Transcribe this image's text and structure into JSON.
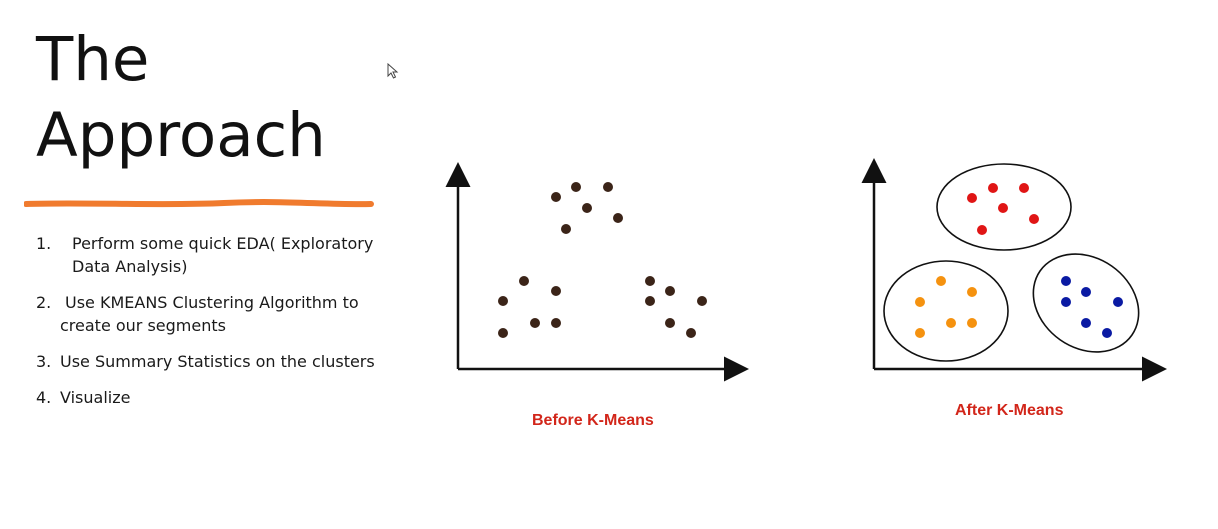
{
  "slide": {
    "title_line1": "The",
    "title_line2": "Approach",
    "steps": [
      {
        "num": "1.",
        "text": "Perform some quick EDA( Exploratory Data Analysis)"
      },
      {
        "num": "2.",
        "text": "Use KMEANS Clustering Algorithm to create our segments"
      },
      {
        "num": "3.",
        "text": "Use Summary Statistics on the clusters"
      },
      {
        "num": "4.",
        "text": "Visualize"
      }
    ]
  },
  "before": {
    "caption": "Before K-Means",
    "point_color": "#3b2418"
  },
  "after": {
    "caption": "After K-Means",
    "cluster_colors": [
      "#e01515",
      "#f5920f",
      "#0a1aa3"
    ]
  },
  "colors": {
    "underline": "#f07b2e",
    "caption": "#d2261a",
    "axis": "#111111"
  }
}
